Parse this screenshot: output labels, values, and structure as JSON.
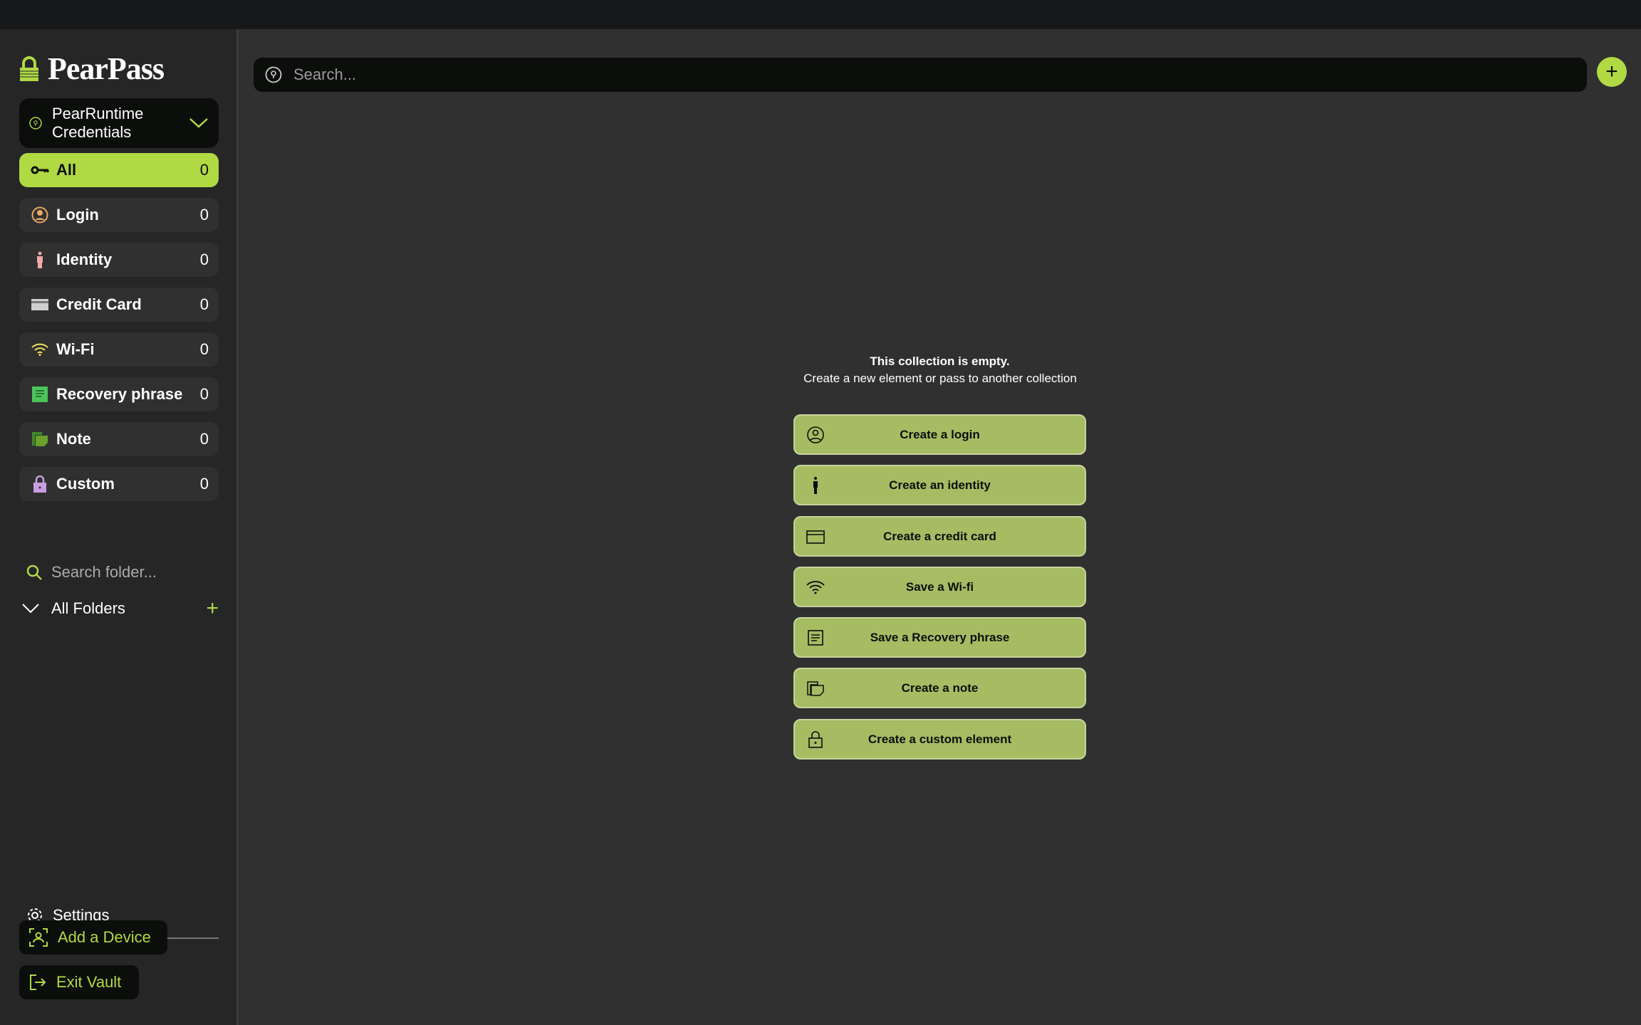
{
  "app": {
    "name": "PearPass"
  },
  "vault": {
    "name": "PearRuntime Credentials"
  },
  "categories": [
    {
      "label": "All",
      "count": "0",
      "icon": "key-icon"
    },
    {
      "label": "Login",
      "count": "0",
      "icon": "user-circle-icon"
    },
    {
      "label": "Identity",
      "count": "0",
      "icon": "person-icon"
    },
    {
      "label": "Credit Card",
      "count": "0",
      "icon": "credit-card-icon"
    },
    {
      "label": "Wi-Fi",
      "count": "0",
      "icon": "wifi-icon"
    },
    {
      "label": "Recovery phrase",
      "count": "0",
      "icon": "document-icon"
    },
    {
      "label": "Note",
      "count": "0",
      "icon": "note-icon"
    },
    {
      "label": "Custom",
      "count": "0",
      "icon": "lock-icon"
    }
  ],
  "folders": {
    "search_placeholder": "Search folder...",
    "all_label": "All Folders"
  },
  "footer": {
    "settings": "Settings",
    "add_device": "Add a Device",
    "exit_vault": "Exit Vault"
  },
  "search": {
    "placeholder": "Search..."
  },
  "empty": {
    "title": "This collection is empty.",
    "subtitle": "Create a new element or pass to another collection"
  },
  "actions": [
    "Create a login",
    "Create an identity",
    "Create a credit card",
    "Save a Wi-fi",
    "Save a Recovery phrase",
    "Create a note",
    "Create a custom element"
  ],
  "colors": {
    "accent": "#b0d944",
    "action_button": "#a5bc63"
  }
}
